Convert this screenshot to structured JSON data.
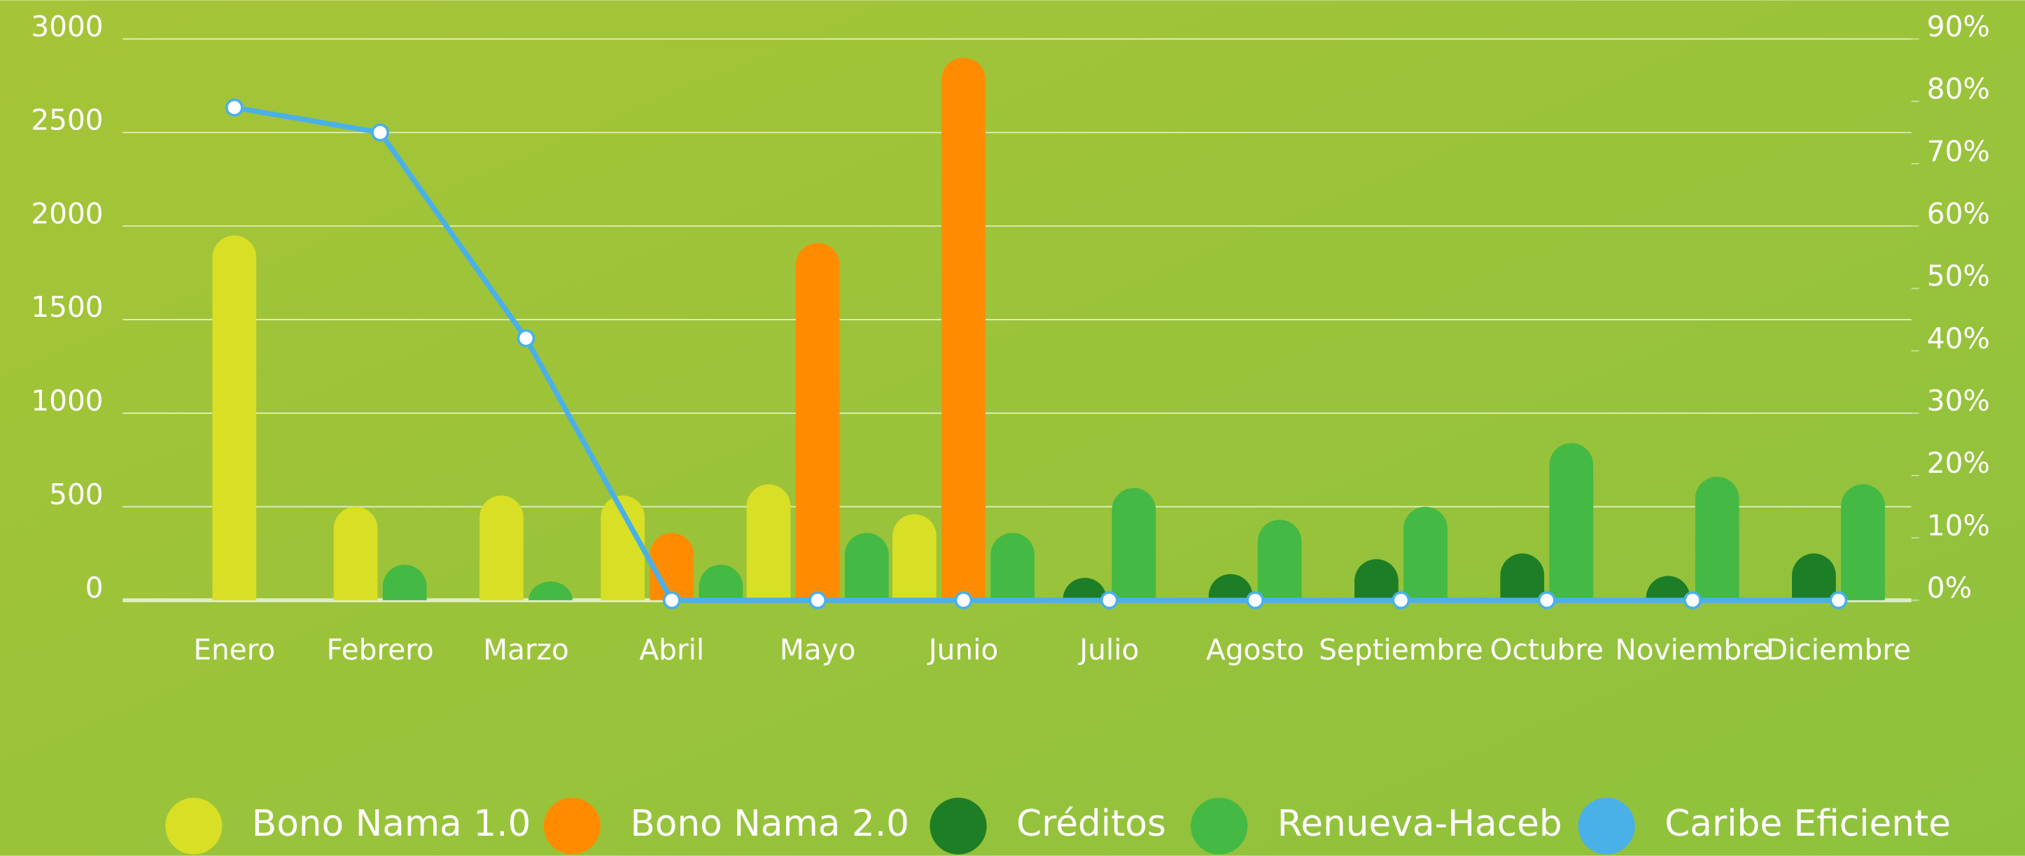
{
  "chart_data": {
    "type": "bar",
    "categories": [
      "Enero",
      "Febrero",
      "Marzo",
      "Abril",
      "Mayo",
      "Junio",
      "Julio",
      "Agosto",
      "Septiembre",
      "Octubre",
      "Noviembre",
      "Diciembre"
    ],
    "series": [
      {
        "name": "Bono Nama 1.0",
        "color": "#d8df24",
        "values": [
          1950,
          500,
          560,
          560,
          620,
          460,
          null,
          null,
          null,
          null,
          null,
          null
        ]
      },
      {
        "name": "Bono Nama 2.0",
        "color": "#ff8c00",
        "values": [
          null,
          null,
          null,
          360,
          1910,
          2900,
          null,
          null,
          null,
          null,
          null,
          null
        ]
      },
      {
        "name": "Créditos",
        "color": "#1e7e26",
        "values": [
          null,
          null,
          null,
          null,
          null,
          null,
          120,
          140,
          220,
          250,
          130,
          250
        ]
      },
      {
        "name": "Renueva-Haceb",
        "color": "#44b944",
        "values": [
          null,
          190,
          100,
          190,
          360,
          360,
          600,
          430,
          500,
          840,
          660,
          620
        ]
      },
      {
        "name": "Caribe Eficiente",
        "color": "#4ab0e8",
        "type": "line",
        "axis": "y2",
        "values": [
          79,
          75,
          42,
          0,
          0,
          0,
          0,
          0,
          0,
          0,
          0,
          0
        ]
      }
    ],
    "ylim": [
      0,
      3000
    ],
    "yticks": [
      0,
      500,
      1000,
      1500,
      2000,
      2500,
      3000
    ],
    "y2lim": [
      0,
      90
    ],
    "y2ticks": [
      {
        "value": 0,
        "label": "0%"
      },
      {
        "value": 10,
        "label": "10%"
      },
      {
        "value": 20,
        "label": "20%"
      },
      {
        "value": 30,
        "label": "30%"
      },
      {
        "value": 40,
        "label": "40%"
      },
      {
        "value": 50,
        "label": "50%"
      },
      {
        "value": 60,
        "label": "60%"
      },
      {
        "value": 70,
        "label": "70%"
      },
      {
        "value": 80,
        "label": "80%"
      },
      {
        "value": 90,
        "label": "90%"
      }
    ],
    "grid": true,
    "legend": "bottom"
  }
}
